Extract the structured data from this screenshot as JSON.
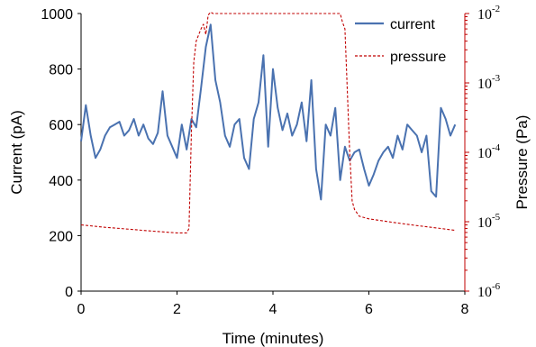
{
  "chart_data": {
    "type": "line",
    "title": "",
    "xlabel": "Time (minutes)",
    "ylabel_left": "Current (pA)",
    "ylabel_right": "Pressure (Pa)",
    "xlim": [
      0,
      8
    ],
    "ylim_left": [
      0,
      1000
    ],
    "ylim_right": [
      1e-06,
      0.01
    ],
    "right_axis_scale": "log",
    "grid": false,
    "legend_position": "top-right",
    "x_ticks": [
      "0",
      "2",
      "4",
      "6",
      "8"
    ],
    "y_left_ticks": [
      "0",
      "200",
      "400",
      "600",
      "800",
      "1000"
    ],
    "y_right_ticks": [
      {
        "base": "10",
        "exp": "-6"
      },
      {
        "base": "10",
        "exp": "-5"
      },
      {
        "base": "10",
        "exp": "-4"
      },
      {
        "base": "10",
        "exp": "-3"
      },
      {
        "base": "10",
        "exp": "-2"
      }
    ],
    "colors": {
      "current": "#4a72b0",
      "pressure": "#c00000",
      "right_axis": "#c00000"
    },
    "series": [
      {
        "name": "current",
        "axis": "left",
        "style": "solid",
        "x": [
          0.0,
          0.1,
          0.2,
          0.3,
          0.4,
          0.5,
          0.6,
          0.7,
          0.8,
          0.9,
          1.0,
          1.1,
          1.2,
          1.3,
          1.4,
          1.5,
          1.6,
          1.7,
          1.8,
          1.9,
          2.0,
          2.1,
          2.2,
          2.3,
          2.4,
          2.5,
          2.6,
          2.7,
          2.8,
          2.9,
          3.0,
          3.1,
          3.2,
          3.3,
          3.4,
          3.5,
          3.6,
          3.7,
          3.8,
          3.9,
          4.0,
          4.1,
          4.2,
          4.3,
          4.4,
          4.5,
          4.6,
          4.7,
          4.8,
          4.9,
          5.0,
          5.1,
          5.2,
          5.3,
          5.4,
          5.5,
          5.6,
          5.7,
          5.8,
          5.9,
          6.0,
          6.1,
          6.2,
          6.3,
          6.4,
          6.5,
          6.6,
          6.7,
          6.8,
          6.9,
          7.0,
          7.1,
          7.2,
          7.3,
          7.4,
          7.5,
          7.6,
          7.7,
          7.8
        ],
        "values": [
          540,
          670,
          560,
          480,
          510,
          560,
          590,
          600,
          610,
          560,
          580,
          620,
          560,
          600,
          550,
          530,
          570,
          720,
          560,
          520,
          480,
          600,
          510,
          620,
          590,
          730,
          880,
          960,
          760,
          680,
          560,
          520,
          600,
          620,
          480,
          440,
          620,
          680,
          850,
          520,
          800,
          660,
          580,
          640,
          560,
          600,
          680,
          540,
          760,
          440,
          330,
          600,
          560,
          660,
          400,
          520,
          470,
          500,
          510,
          440,
          380,
          420,
          470,
          500,
          520,
          480,
          560,
          510,
          600,
          580,
          560,
          500,
          560,
          360,
          340,
          660,
          620,
          560,
          600
        ]
      },
      {
        "name": "pressure",
        "axis": "right",
        "style": "dashed",
        "x": [
          0.0,
          0.5,
          1.0,
          1.5,
          2.0,
          2.2,
          2.25,
          2.3,
          2.35,
          2.4,
          2.5,
          2.55,
          2.6,
          2.65,
          2.7,
          2.75,
          2.8,
          3.0,
          3.5,
          4.0,
          4.5,
          5.0,
          5.4,
          5.45,
          5.5,
          5.55,
          5.6,
          5.65,
          5.7,
          5.8,
          6.0,
          6.5,
          7.0,
          7.5,
          7.8
        ],
        "values": [
          9e-06,
          8.3e-06,
          7.8e-06,
          7.3e-06,
          6.9e-06,
          6.9e-06,
          8e-06,
          0.0002,
          0.002,
          0.004,
          0.006,
          0.007,
          0.005,
          0.0095,
          0.0105,
          0.01,
          0.01,
          0.01,
          0.01,
          0.01,
          0.01,
          0.01,
          0.01,
          0.0075,
          0.006,
          0.0008,
          0.0001,
          2e-05,
          1.5e-05,
          1.2e-05,
          1.1e-05,
          9.8e-06,
          8.8e-06,
          8e-06,
          7.5e-06
        ]
      }
    ]
  }
}
